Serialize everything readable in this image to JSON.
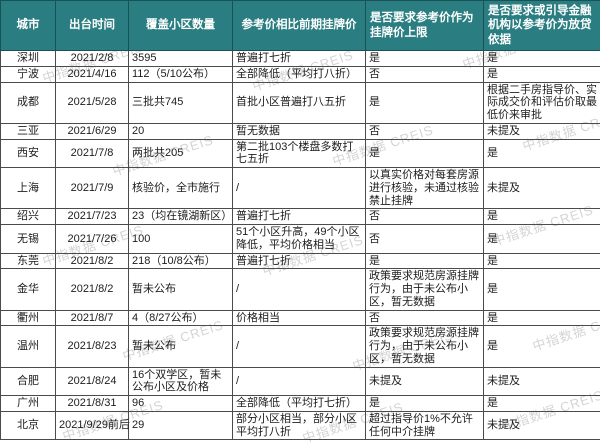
{
  "table": {
    "headers": [
      "城市",
      "出台时间",
      "覆盖小区数量",
      "参考价相比前期挂牌价",
      "是否要求参考价作为挂牌价上限",
      "是否要求或引导金融机构以参考价为放贷依据"
    ],
    "rows": [
      [
        "深圳",
        "2021/2/8",
        "3595",
        "普遍打七折",
        "是",
        "是"
      ],
      [
        "宁波",
        "2021/4/16",
        "112（5/10公布）",
        "全部降低（平均打八折）",
        "否",
        "是"
      ],
      [
        "成都",
        "2021/5/28",
        "三批共745",
        "首批小区普遍打八五折",
        "是",
        "根据二手房指导价、实际成交价和评估价取最低价来审批"
      ],
      [
        "三亚",
        "2021/6/29",
        "20",
        "暂无数据",
        "否",
        "未提及"
      ],
      [
        "西安",
        "2021/7/8",
        "两批共205",
        "第二批103个楼盘多数打七五折",
        "是",
        "是"
      ],
      [
        "上海",
        "2021/7/9",
        "核验价，全市施行",
        "/",
        "以真实价格对每套房源进行核验，未通过核验禁止挂牌",
        "未提及"
      ],
      [
        "绍兴",
        "2021/7/23",
        "23（均在镜湖新区）",
        "普遍打七折",
        "否",
        "是"
      ],
      [
        "无锡",
        "2021/7/26",
        "100",
        "51个小区升高，49个小区降低，平均价格相当",
        "否",
        "是"
      ],
      [
        "东莞",
        "2021/8/2",
        "218（10/8公布）",
        "普遍打七折",
        "是",
        "是"
      ],
      [
        "金华",
        "2021/8/2",
        "暂未公布",
        "/",
        "政策要求规范房源挂牌行为，由于未公布小区，暂无数据",
        "是"
      ],
      [
        "衢州",
        "2021/8/7",
        "4（8/27公布）",
        "价格相当",
        "否",
        "是"
      ],
      [
        "温州",
        "2021/8/23",
        "暂未公布",
        "/",
        "政策要求规范房源挂牌行为，由于未公布小区，暂无数据",
        "是"
      ],
      [
        "合肥",
        "2021/8/24",
        "16个双学区，暂未公布小区及价格",
        "/",
        "未提及",
        "未提及"
      ],
      [
        "广州",
        "2021/8/31",
        "96",
        "全部降低（平均打七折）",
        "是",
        "是"
      ],
      [
        "北京",
        "2021/9/29前后",
        "29",
        "部分小区相当，部分小区平均打八折",
        "超过指导价1%不允许任何中介挂牌",
        "未提及"
      ]
    ]
  },
  "watermark": {
    "text": "中指数据 CREIS"
  },
  "colors": {
    "header_bg": "#2a7d81",
    "header_text": "#ffffff",
    "body_text": "#1c1c1c",
    "border": "#4b4b4b",
    "watermark": "#a0a0a0"
  }
}
